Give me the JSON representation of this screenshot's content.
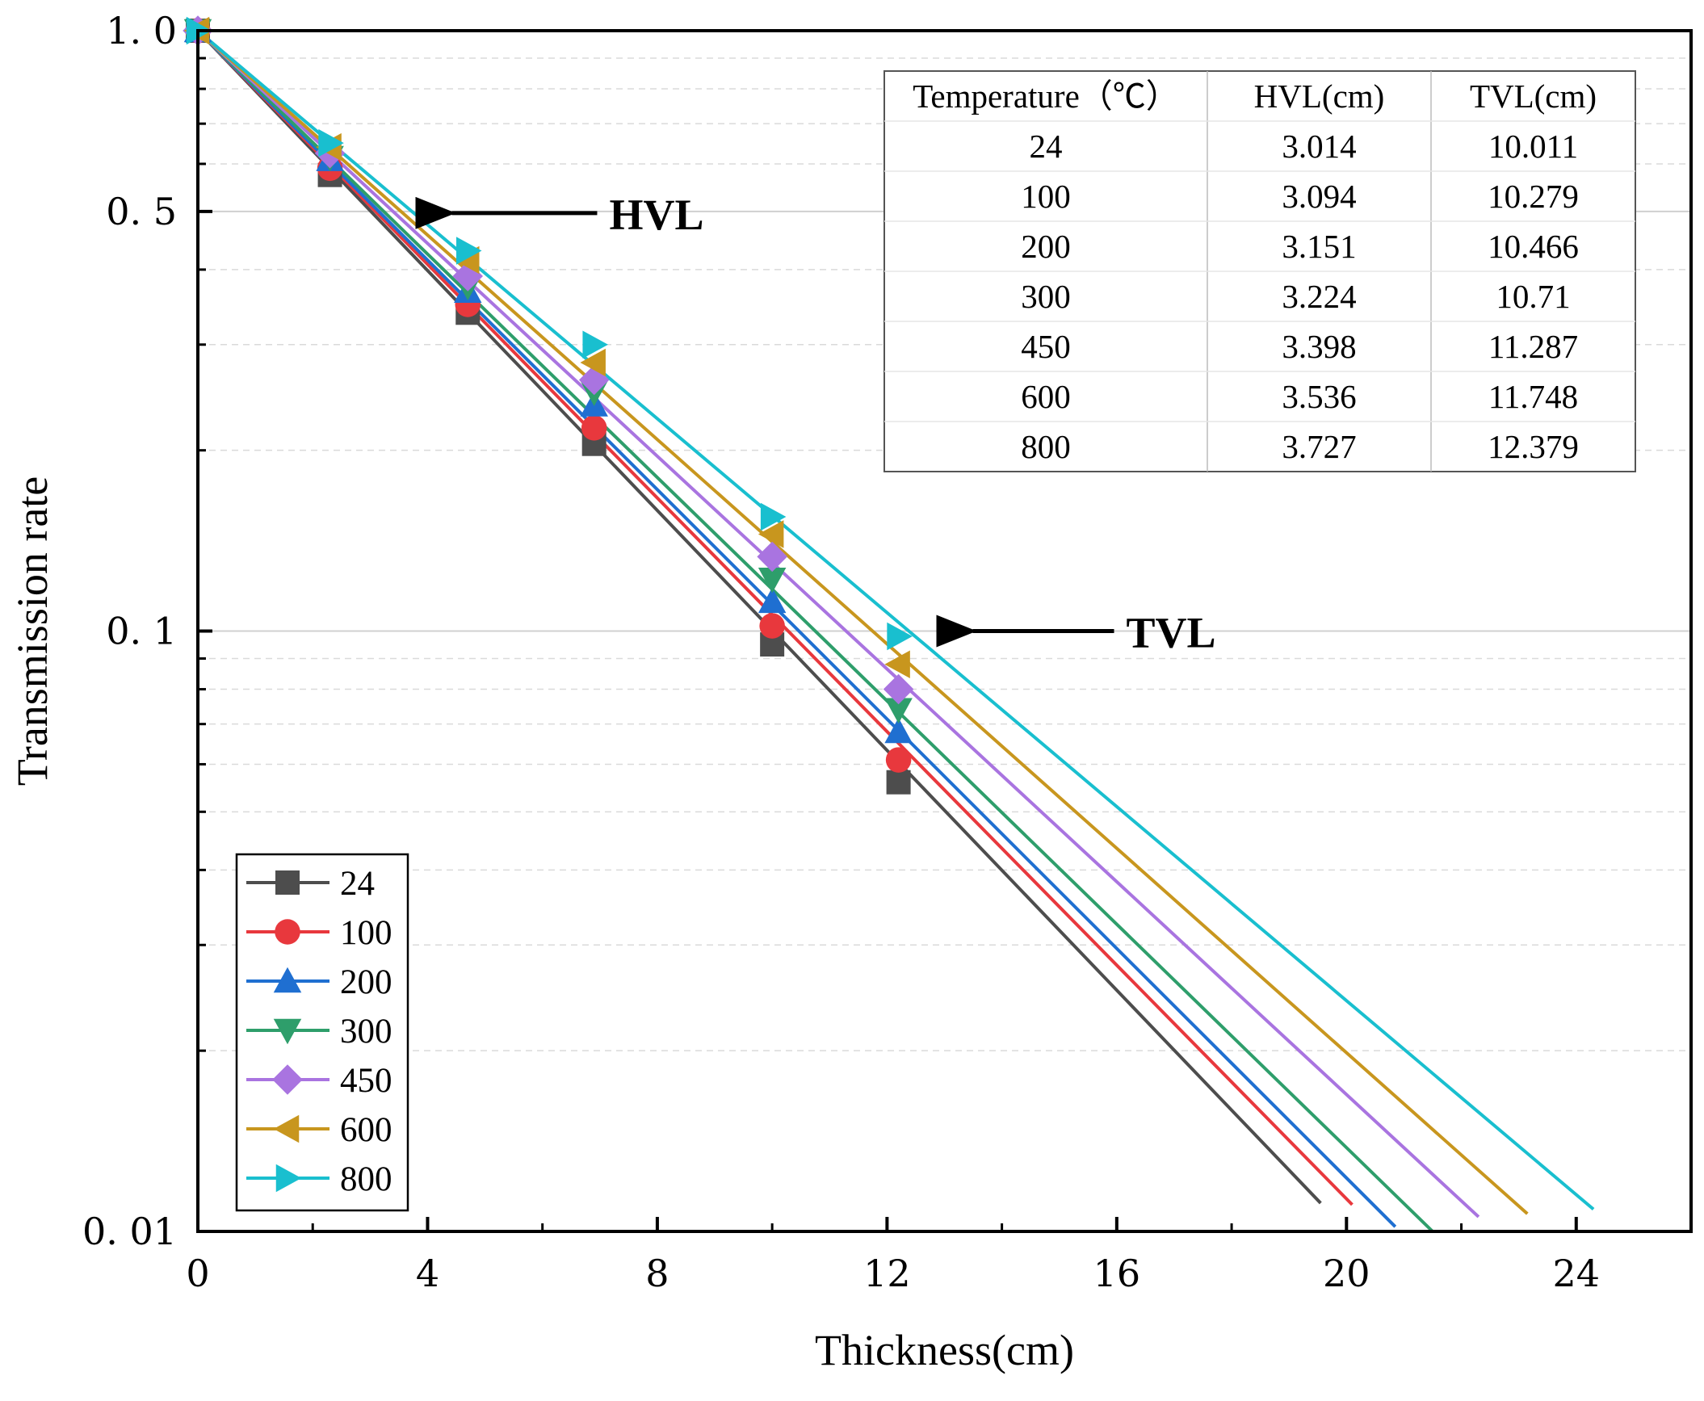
{
  "chart_data": {
    "type": "line",
    "title": "",
    "xlabel": "Thickness(cm)",
    "ylabel": "Transmission rate",
    "xlim": [
      0,
      26
    ],
    "ylim": [
      0.01,
      1.0
    ],
    "yscale": "log",
    "x_ticks": [
      0,
      4,
      8,
      12,
      16,
      20,
      24
    ],
    "x_tick_labels": [
      "0",
      "4",
      "8",
      "12",
      "16",
      "20",
      "24"
    ],
    "y_ticks": [
      1.0,
      0.5,
      0.1,
      0.01
    ],
    "y_tick_labels": [
      "1. 0",
      "0. 5",
      "0. 1",
      "0. 01"
    ],
    "grid": true,
    "legend_position": "bottom-left",
    "series": [
      {
        "name": "24",
        "color": "#4d4d4d",
        "marker": "square",
        "hvl": 3.014,
        "tvl": 10.011,
        "x": [
          0,
          2.3,
          4.7,
          6.9,
          10.0,
          12.2
        ],
        "y": [
          1.0,
          0.575,
          0.339,
          0.205,
          0.095,
          0.056
        ],
        "line_end_x": 19.55
      },
      {
        "name": "100",
        "color": "#e8383d",
        "marker": "circle",
        "hvl": 3.094,
        "tvl": 10.279,
        "x": [
          0,
          2.3,
          4.7,
          6.9,
          10.0,
          12.2
        ],
        "y": [
          1.0,
          0.59,
          0.35,
          0.218,
          0.102,
          0.061
        ],
        "line_end_x": 20.1
      },
      {
        "name": "200",
        "color": "#1f6fd1",
        "marker": "triangle-up",
        "hvl": 3.151,
        "tvl": 10.466,
        "x": [
          0,
          2.3,
          4.7,
          6.9,
          10.0,
          12.2
        ],
        "y": [
          1.0,
          0.61,
          0.368,
          0.238,
          0.112,
          0.068
        ],
        "line_end_x": 20.85
      },
      {
        "name": "300",
        "color": "#2e9e6b",
        "marker": "triangle-down",
        "hvl": 3.224,
        "tvl": 10.71,
        "x": [
          0,
          2.3,
          4.7,
          6.9,
          10.0,
          12.2
        ],
        "y": [
          1.0,
          0.615,
          0.375,
          0.25,
          0.122,
          0.074
        ],
        "line_end_x": 21.5
      },
      {
        "name": "450",
        "color": "#a974e0",
        "marker": "diamond",
        "hvl": 3.398,
        "tvl": 11.287,
        "x": [
          0,
          2.3,
          4.7,
          6.9,
          10.0,
          12.2
        ],
        "y": [
          1.0,
          0.625,
          0.39,
          0.262,
          0.133,
          0.08
        ],
        "line_end_x": 22.3
      },
      {
        "name": "600",
        "color": "#c8961e",
        "marker": "triangle-left",
        "hvl": 3.536,
        "tvl": 11.748,
        "x": [
          0,
          2.3,
          4.7,
          6.9,
          10.0,
          12.2
        ],
        "y": [
          1.0,
          0.64,
          0.415,
          0.28,
          0.145,
          0.088
        ],
        "line_end_x": 23.15
      },
      {
        "name": "800",
        "color": "#19bfcf",
        "marker": "triangle-right",
        "hvl": 3.727,
        "tvl": 12.379,
        "x": [
          0,
          2.3,
          4.7,
          6.9,
          10.0,
          12.2
        ],
        "y": [
          1.0,
          0.65,
          0.43,
          0.3,
          0.155,
          0.098
        ],
        "line_end_x": 24.3
      }
    ],
    "annotations": [
      {
        "label": "HVL",
        "points_to_x": 4.0,
        "points_to_y": 0.5
      },
      {
        "label": "TVL",
        "points_to_x": 13.0,
        "points_to_y": 0.1
      }
    ],
    "table": {
      "headers": [
        "Temperature（℃）",
        "HVL(cm)",
        "TVL(cm)"
      ],
      "rows": [
        [
          "24",
          "3.014",
          "10.011"
        ],
        [
          "100",
          "3.094",
          "10.279"
        ],
        [
          "200",
          "3.151",
          "10.466"
        ],
        [
          "300",
          "3.224",
          "10.71"
        ],
        [
          "450",
          "3.398",
          "11.287"
        ],
        [
          "600",
          "3.536",
          "11.748"
        ],
        [
          "800",
          "3.727",
          "12.379"
        ]
      ]
    }
  }
}
